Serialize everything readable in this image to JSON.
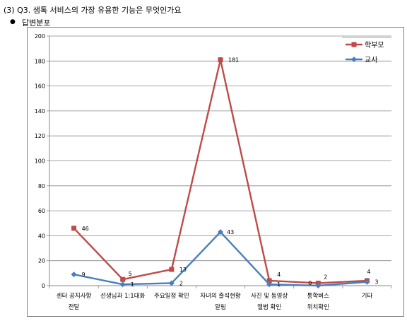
{
  "heading": {
    "question": "(3) Q3. 샘톡 서비스의 가장 유용한 기능은 무엇인가요",
    "bullet": "●",
    "subtitle": "답변분포"
  },
  "chart_data": {
    "type": "line",
    "title": "",
    "xlabel": "",
    "ylabel": "",
    "ylim": [
      0,
      200
    ],
    "ytick_step": 20,
    "grid": true,
    "legend_position": "top-right",
    "categories": [
      [
        "센터 공지사항",
        "전달"
      ],
      [
        "선생님과 1:1대화"
      ],
      [
        "주요일정 확인"
      ],
      [
        "자녀의 출석현황",
        "알림"
      ],
      [
        "사진 및 동영상",
        "앨범 확인"
      ],
      [
        "통학버스",
        "위치확인"
      ],
      [
        "기타"
      ]
    ],
    "series": [
      {
        "name": "학부모",
        "color": "#BE4B48",
        "marker": "square",
        "values": [
          46,
          5,
          13,
          181,
          4,
          2,
          4
        ]
      },
      {
        "name": "교사",
        "color": "#4A7EBB",
        "marker": "diamond",
        "values": [
          9,
          1,
          2,
          43,
          1,
          0,
          3
        ]
      }
    ]
  }
}
